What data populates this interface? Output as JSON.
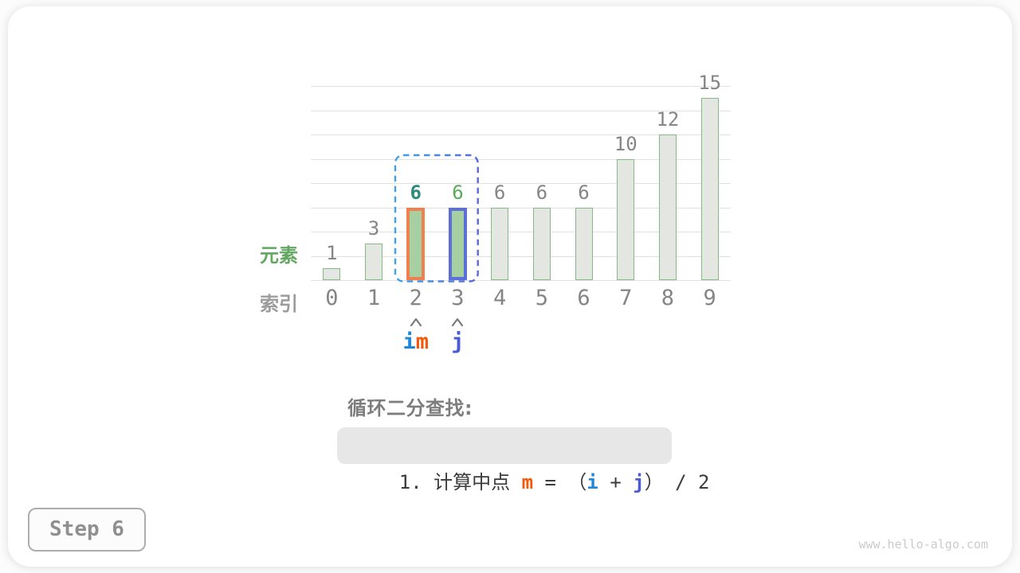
{
  "chart_data": {
    "type": "bar",
    "title": "",
    "categories": [
      "0",
      "1",
      "2",
      "3",
      "4",
      "5",
      "6",
      "7",
      "8",
      "9"
    ],
    "values": [
      1,
      3,
      6,
      6,
      6,
      6,
      6,
      10,
      12,
      15
    ],
    "xlabel": "索引",
    "ylabel": "元素",
    "ylim": [
      0,
      16
    ],
    "grid": true,
    "gridline_every": 2,
    "legend": "none",
    "bar_fill": "#E4E6E1",
    "bar_stroke": "#85B985",
    "value_label_color": "#858585",
    "highlights": [
      {
        "index": 2,
        "fill": "#A6CFA2",
        "stroke": "#F0814E",
        "value_color": "#2F8A7E",
        "value_bold": true
      },
      {
        "index": 3,
        "fill": "#A6CFA2",
        "stroke": "#5C70D8",
        "value_color": "#57AB57",
        "value_bold": false
      }
    ]
  },
  "axis_labels": {
    "y": "元素",
    "y_color": "#63A763",
    "x": "索引",
    "x_color": "#9C9C9C"
  },
  "range_box": {
    "from_index": 2,
    "to_index": 3,
    "color_left": "#3DA1EC",
    "color_right": "#5A6BD8"
  },
  "pointers": [
    {
      "index": 2,
      "parts": [
        {
          "text": "i",
          "color": "#2287D6"
        },
        {
          "text": "m",
          "color": "#F2590A"
        }
      ]
    },
    {
      "index": 3,
      "parts": [
        {
          "text": "j",
          "color": "#4A5BD5"
        }
      ]
    }
  ],
  "arrow_color": "#7A7A7A",
  "caption": {
    "text": "循环二分查找:"
  },
  "formula": {
    "segments": [
      {
        "text": "1. ",
        "color": "#3B3B3B",
        "bold": false
      },
      {
        "text": "计算中点 ",
        "color": "#3B3B3B",
        "bold": false
      },
      {
        "text": "m",
        "color": "#F2590A",
        "bold": true
      },
      {
        "text": " = ",
        "color": "#3B3B3B",
        "bold": false
      },
      {
        "text": "（",
        "color": "#3B3B3B",
        "bold": false
      },
      {
        "text": "i",
        "color": "#2287D6",
        "bold": true
      },
      {
        "text": " + ",
        "color": "#3B3B3B",
        "bold": false
      },
      {
        "text": "j",
        "color": "#4A5BD5",
        "bold": true
      },
      {
        "text": "）",
        "color": "#3B3B3B",
        "bold": false
      },
      {
        "text": " / ",
        "color": "#3B3B3B",
        "bold": false
      },
      {
        "text": "2",
        "color": "#3B3B3B",
        "bold": false
      }
    ]
  },
  "step_badge": {
    "text": "Step 6"
  },
  "watermark": {
    "text": "www.hello-algo.com"
  }
}
